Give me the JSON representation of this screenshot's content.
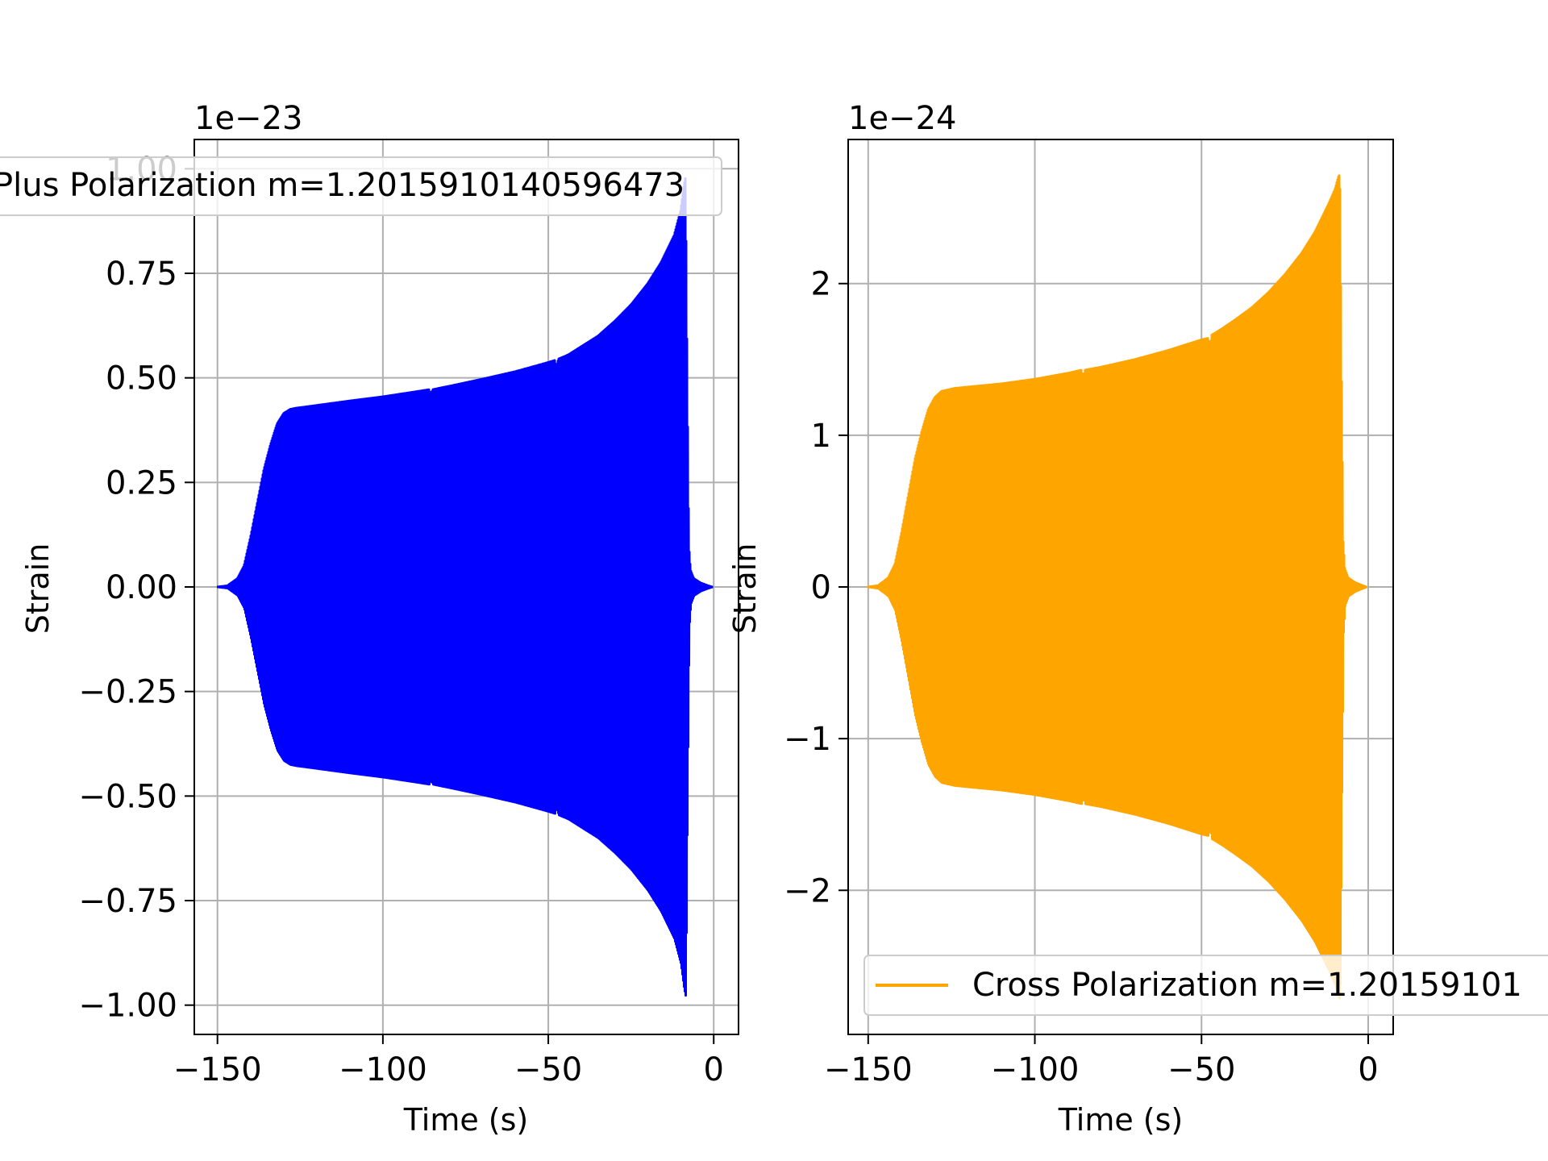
{
  "chart_data": [
    {
      "type": "line",
      "fill_style": "dense oscillation",
      "title": "",
      "offset_text": "1e−23",
      "xlabel": "Time (s)",
      "ylabel": "Strain",
      "xlim": [
        -157,
        7.5
      ],
      "ylim": [
        -1.07,
        1.07
      ],
      "xticks": [
        -150,
        -100,
        -50,
        0
      ],
      "xtick_labels": [
        "−150",
        "−100",
        "−50",
        "0"
      ],
      "yticks": [
        -1.0,
        -0.75,
        -0.5,
        -0.25,
        0.0,
        0.25,
        0.5,
        0.75,
        1.0
      ],
      "ytick_labels": [
        "−1.00",
        "−0.75",
        "−0.50",
        "−0.25",
        "0.00",
        "0.25",
        "0.50",
        "0.75",
        "1.00"
      ],
      "grid": true,
      "legend_position": "top-left",
      "series": [
        {
          "name": "Plus Polarization m=1.2015910140596473",
          "color": "#0000ff",
          "envelope": {
            "time": [
              -150,
              -147,
              -144,
              -142,
              -140,
              -138,
              -136,
              -134,
              -132,
              -130,
              -128,
              -126,
              -124,
              -110,
              -100,
              -90,
              -86,
              -85.5,
              -85,
              -80,
              -70,
              -60,
              -50,
              -48,
              -47.5,
              -47,
              -44,
              -40,
              -35,
              -30,
              -25,
              -20,
              -16,
              -12,
              -10,
              -9,
              -8.5,
              -8,
              -7.5,
              -7,
              -6,
              -4,
              -2,
              -0.5
            ],
            "amplitude": [
              0,
              0.003,
              0.02,
              0.05,
              0.12,
              0.2,
              0.28,
              0.34,
              0.39,
              0.415,
              0.425,
              0.428,
              0.43,
              0.445,
              0.455,
              0.467,
              0.472,
              0.455,
              0.472,
              0.48,
              0.497,
              0.515,
              0.537,
              0.542,
              0.52,
              0.545,
              0.555,
              0.575,
              0.6,
              0.635,
              0.675,
              0.725,
              0.775,
              0.84,
              0.9,
              0.96,
              0.98,
              0.5,
              0.1,
              0.04,
              0.02,
              0.01,
              0.004,
              0
            ]
          }
        }
      ]
    },
    {
      "type": "line",
      "fill_style": "dense oscillation",
      "title": "",
      "offset_text": "1e−24",
      "xlabel": "Time (s)",
      "ylabel": "Strain",
      "xlim": [
        -156,
        7.5
      ],
      "ylim": [
        -2.95,
        2.95
      ],
      "xticks": [
        -150,
        -100,
        -50,
        0
      ],
      "xtick_labels": [
        "−150",
        "−100",
        "−50",
        "0"
      ],
      "yticks": [
        -2,
        -1,
        0,
        1,
        2
      ],
      "ytick_labels": [
        "−2",
        "−1",
        "0",
        "1",
        "2"
      ],
      "grid": true,
      "legend_position": "bottom-right",
      "series": [
        {
          "name": "Cross Polarization m=1.20159101",
          "color": "#ffa500",
          "envelope": {
            "time": [
              -150,
              -147,
              -144,
              -142,
              -140,
              -138,
              -136,
              -134,
              -132,
              -130,
              -128,
              -126,
              -124,
              -110,
              -100,
              -90,
              -86,
              -85.5,
              -85,
              -80,
              -70,
              -60,
              -50,
              -48,
              -47.5,
              -47,
              -44,
              -40,
              -35,
              -30,
              -25,
              -20,
              -16,
              -12,
              -10,
              -9,
              -8.5,
              -8,
              -7.5,
              -7,
              -6,
              -4,
              -2,
              -0.5
            ],
            "amplitude": [
              0,
              0.01,
              0.06,
              0.15,
              0.36,
              0.6,
              0.84,
              1.02,
              1.17,
              1.25,
              1.29,
              1.3,
              1.31,
              1.34,
              1.37,
              1.41,
              1.43,
              1.35,
              1.43,
              1.45,
              1.5,
              1.56,
              1.63,
              1.64,
              1.55,
              1.66,
              1.7,
              1.76,
              1.84,
              1.94,
              2.06,
              2.2,
              2.34,
              2.52,
              2.62,
              2.7,
              2.72,
              1.4,
              0.3,
              0.12,
              0.06,
              0.03,
              0.012,
              0
            ]
          }
        }
      ]
    }
  ]
}
